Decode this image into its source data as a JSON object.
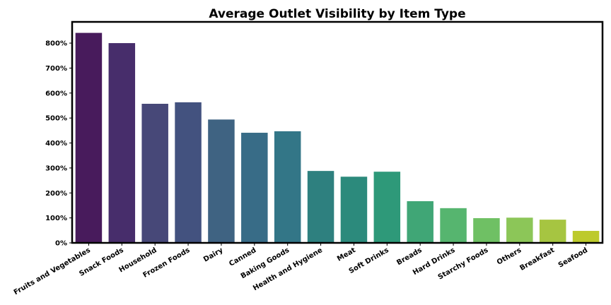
{
  "chart_data": {
    "type": "bar",
    "title": "Average Outlet Visibility by Item Type",
    "xlabel": "",
    "ylabel": "",
    "categories": [
      "Fruits and Vegetables",
      "Snack Foods",
      "Household",
      "Frozen Foods",
      "Dairy",
      "Canned",
      "Baking Goods",
      "Health and Hygiene",
      "Meat",
      "Soft Drinks",
      "Breads",
      "Hard Drinks",
      "Starchy Foods",
      "Others",
      "Breakfast",
      "Seafood"
    ],
    "values": [
      841,
      800,
      557,
      563,
      494,
      441,
      447,
      288,
      265,
      285,
      167,
      139,
      99,
      101,
      93,
      48
    ],
    "value_unit": "%",
    "ylim": [
      0,
      885
    ],
    "yticks": [
      0,
      100,
      200,
      300,
      400,
      500,
      600,
      700,
      800
    ],
    "ytick_labels": [
      "0%",
      "100%",
      "200%",
      "300%",
      "400%",
      "500%",
      "600%",
      "700%",
      "800%"
    ],
    "grid": false,
    "legend": "none",
    "colors": [
      "#481b5c",
      "#472d6b",
      "#474878",
      "#43527f",
      "#3f6382",
      "#386c87",
      "#337687",
      "#2e807f",
      "#2c8a7c",
      "#2e9979",
      "#40a676",
      "#56b56f",
      "#6fc064",
      "#8cc658",
      "#a6c541",
      "#bdca2c"
    ]
  }
}
